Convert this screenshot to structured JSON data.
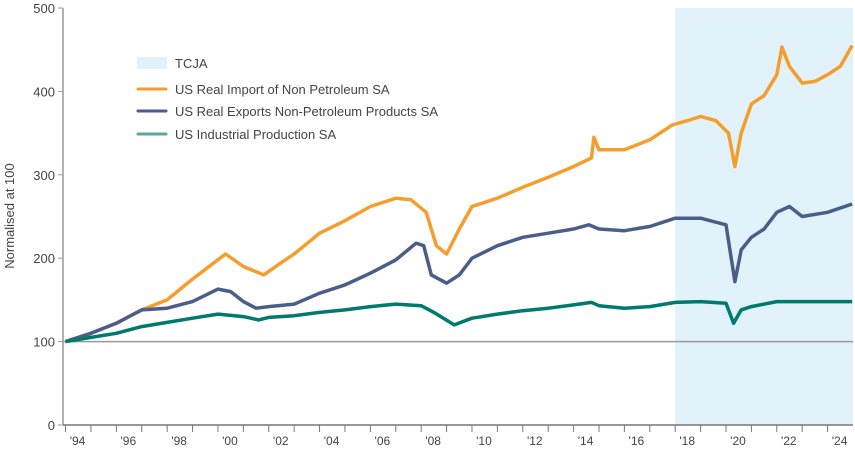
{
  "chart_data": {
    "type": "line",
    "title": "",
    "xlabel": "",
    "ylabel": "Normalised at 100",
    "xlim": [
      1993.9,
      2025.0
    ],
    "ylim": [
      0,
      500
    ],
    "yticks": [
      0,
      100,
      200,
      300,
      400,
      500
    ],
    "xticks": [
      1994,
      1995,
      1996,
      1997,
      1998,
      1999,
      2000,
      2001,
      2002,
      2003,
      2004,
      2005,
      2006,
      2007,
      2008,
      2009,
      2010,
      2011,
      2012,
      2013,
      2014,
      2015,
      2016,
      2017,
      2018,
      2019,
      2020,
      2021,
      2022,
      2023,
      2024
    ],
    "xtick_labels": [
      {
        "year": 1994,
        "label": "'94"
      },
      {
        "year": 1996,
        "label": "'96"
      },
      {
        "year": 1998,
        "label": "'98"
      },
      {
        "year": 2000,
        "label": "'00"
      },
      {
        "year": 2002,
        "label": "'02"
      },
      {
        "year": 2004,
        "label": "'04"
      },
      {
        "year": 2006,
        "label": "'06"
      },
      {
        "year": 2008,
        "label": "'08"
      },
      {
        "year": 2010,
        "label": "'10"
      },
      {
        "year": 2012,
        "label": "'12"
      },
      {
        "year": 2014,
        "label": "'14"
      },
      {
        "year": 2016,
        "label": "'16"
      },
      {
        "year": 2018,
        "label": "'18"
      },
      {
        "year": 2020,
        "label": "'20"
      },
      {
        "year": 2022,
        "label": "'22"
      },
      {
        "year": 2024,
        "label": "'24"
      }
    ],
    "reference_line": 100,
    "legend_position": "top-left",
    "shaded_region": {
      "name": "TCJA",
      "start": 2018.0,
      "end": 2025.0,
      "color": "#E1F2FB"
    },
    "series": [
      {
        "name": "US Real Import of Non Petroleum SA",
        "color": "#F59E2E",
        "x": [
          1994,
          1995,
          1996,
          1997,
          1998,
          1999,
          2000.3,
          2001,
          2001.8,
          2002.5,
          2003,
          2004,
          2005,
          2006,
          2007,
          2007.6,
          2008.2,
          2008.6,
          2009,
          2009.5,
          2010,
          2011,
          2012,
          2013,
          2014,
          2014.7,
          2014.8,
          2015,
          2016,
          2017,
          2017.9,
          2018.5,
          2019,
          2019.6,
          2020.1,
          2020.35,
          2020.6,
          2021,
          2021.5,
          2022,
          2022.2,
          2022.5,
          2023,
          2023.5,
          2024,
          2024.5,
          2024.97
        ],
        "y": [
          100,
          110,
          122,
          138,
          150,
          175,
          205,
          190,
          180,
          195,
          205,
          230,
          245,
          262,
          272,
          270,
          255,
          215,
          205,
          235,
          262,
          272,
          285,
          297,
          310,
          320,
          345,
          330,
          330,
          342,
          360,
          365,
          370,
          365,
          350,
          310,
          350,
          385,
          395,
          420,
          453,
          430,
          410,
          412,
          420,
          430,
          455
        ]
      },
      {
        "name": "US Real Exports Non-Petroleum Products SA",
        "color": "#4B5E8A",
        "x": [
          1994,
          1995,
          1996,
          1997,
          1998,
          1999,
          2000,
          2000.5,
          2001,
          2001.5,
          2002,
          2003,
          2004,
          2005,
          2006,
          2007,
          2007.8,
          2008.1,
          2008.4,
          2009,
          2009.5,
          2010,
          2011,
          2012,
          2013,
          2014,
          2014.6,
          2015,
          2016,
          2017,
          2018,
          2019,
          2020,
          2020.35,
          2020.6,
          2021,
          2021.5,
          2022,
          2022.5,
          2023,
          2024,
          2024.97
        ],
        "y": [
          100,
          110,
          122,
          138,
          140,
          148,
          163,
          160,
          148,
          140,
          142,
          145,
          158,
          168,
          182,
          198,
          218,
          215,
          180,
          170,
          180,
          200,
          215,
          225,
          230,
          235,
          240,
          235,
          233,
          238,
          248,
          248,
          240,
          172,
          210,
          225,
          235,
          255,
          262,
          250,
          255,
          265
        ]
      },
      {
        "name": "US Industrial Production SA",
        "color": "#007A6E",
        "legend_color": "#5BA89C",
        "x": [
          1994,
          1995,
          1996,
          1997,
          1998,
          1999,
          2000,
          2001,
          2001.6,
          2002,
          2003,
          2004,
          2005,
          2006,
          2007,
          2008,
          2008.5,
          2009.3,
          2010,
          2011,
          2012,
          2013,
          2014,
          2014.7,
          2015,
          2016,
          2017,
          2018,
          2019,
          2020,
          2020.3,
          2020.6,
          2021,
          2022,
          2023,
          2024,
          2024.97
        ],
        "y": [
          100,
          105,
          110,
          118,
          123,
          128,
          133,
          130,
          126,
          129,
          131,
          135,
          138,
          142,
          145,
          143,
          135,
          120,
          128,
          133,
          137,
          140,
          144,
          147,
          143,
          140,
          142,
          147,
          148,
          146,
          122,
          138,
          142,
          148,
          148,
          148,
          148
        ]
      }
    ]
  }
}
